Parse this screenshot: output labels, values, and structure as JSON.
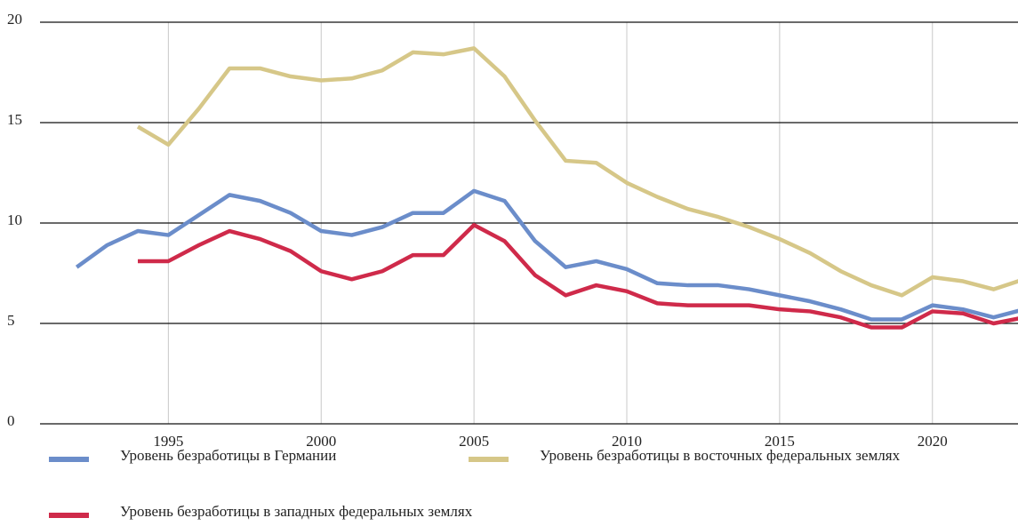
{
  "chart_data": {
    "type": "line",
    "x": [
      1992,
      1993,
      1994,
      1995,
      1996,
      1997,
      1998,
      1999,
      2000,
      2001,
      2002,
      2003,
      2004,
      2005,
      2006,
      2007,
      2008,
      2009,
      2010,
      2011,
      2012,
      2013,
      2014,
      2015,
      2016,
      2017,
      2018,
      2019,
      2020,
      2021,
      2022,
      2023
    ],
    "series": [
      {
        "name": "Уровень безработицы в Германии",
        "color": "#6b8dca",
        "values": [
          7.8,
          8.9,
          9.6,
          9.4,
          10.4,
          11.4,
          11.1,
          10.5,
          9.6,
          9.4,
          9.8,
          10.5,
          10.5,
          11.6,
          11.1,
          9.1,
          7.8,
          8.1,
          7.7,
          7.0,
          6.9,
          6.9,
          6.7,
          6.4,
          6.1,
          5.7,
          5.2,
          5.2,
          5.9,
          5.7,
          5.3,
          5.7
        ]
      },
      {
        "name": "Уровень безработицы в восточных федеральных землях",
        "color": "#d6c788",
        "values": [
          null,
          null,
          14.8,
          13.9,
          15.7,
          17.7,
          17.7,
          17.3,
          17.1,
          17.2,
          17.6,
          18.5,
          18.4,
          18.7,
          17.3,
          15.1,
          13.1,
          13.0,
          12.0,
          11.3,
          10.7,
          10.3,
          9.8,
          9.2,
          8.5,
          7.6,
          6.9,
          6.4,
          7.3,
          7.1,
          6.7,
          7.2
        ]
      },
      {
        "name": "Уровень безработицы в западных федеральных землях",
        "color": "#cf2a4a",
        "values": [
          null,
          null,
          8.1,
          8.1,
          8.9,
          9.6,
          9.2,
          8.6,
          7.6,
          7.2,
          7.6,
          8.4,
          8.4,
          9.9,
          9.1,
          7.4,
          6.4,
          6.9,
          6.6,
          6.0,
          5.9,
          5.9,
          5.9,
          5.7,
          5.6,
          5.3,
          4.8,
          4.8,
          5.6,
          5.5,
          5.0,
          5.3
        ]
      }
    ],
    "xlim": [
      1990.8,
      2022.8
    ],
    "xticks": [
      1995,
      2000,
      2005,
      2010,
      2015,
      2020
    ],
    "ylim": [
      0,
      20
    ],
    "yticks": [
      0,
      5,
      10,
      15,
      20
    ],
    "grid": true
  }
}
